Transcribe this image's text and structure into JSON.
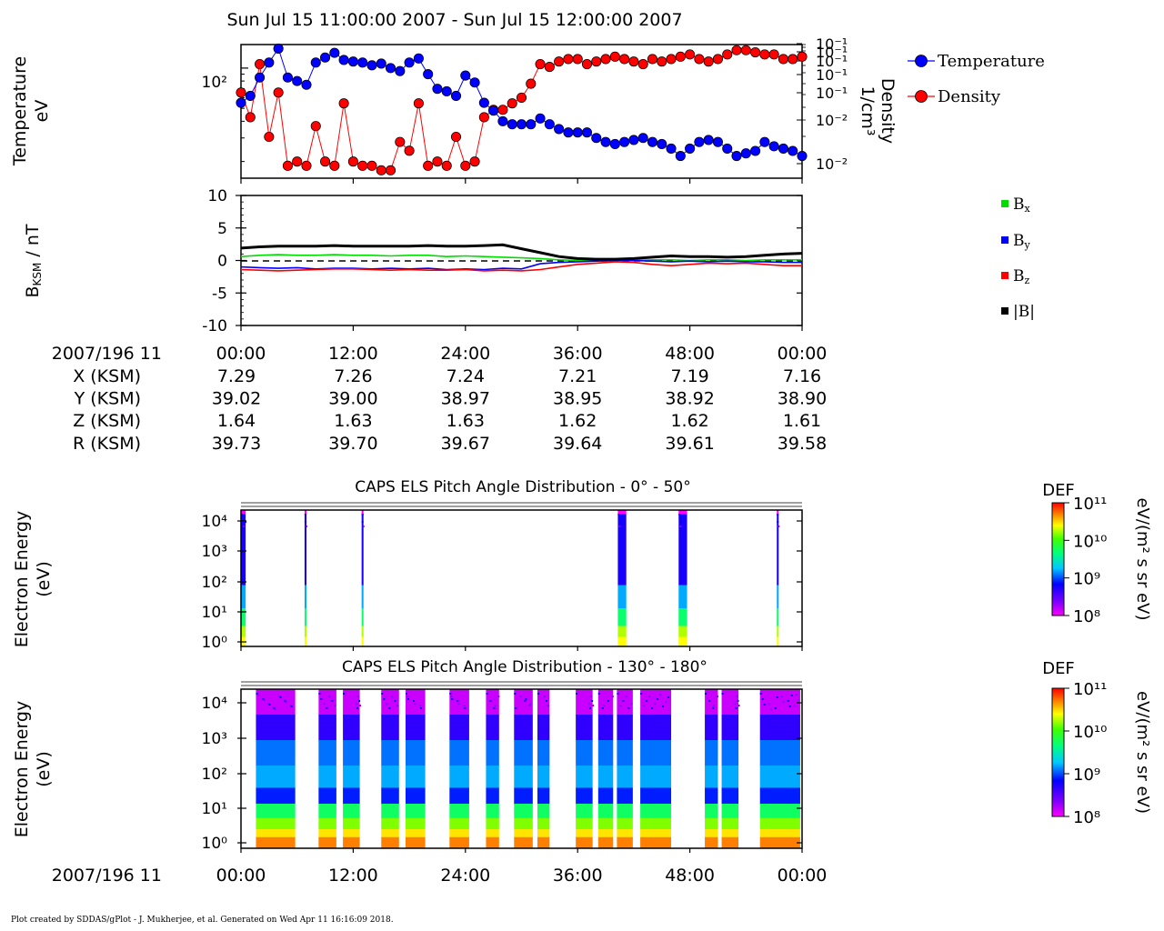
{
  "title": "Sun Jul 15 11:00:00 2007 - Sun Jul 15 12:00:00 2007",
  "footer": "Plot created by SDDAS/gPlot - J. Mukherjee, et al.  Generated on Wed Apr 11 16:16:09 2018.",
  "colors": {
    "temperature": "#0000ff",
    "density": "#ff0000",
    "bx": "#00dd00",
    "by": "#0000ff",
    "bz": "#ff0000",
    "btot": "#000000"
  },
  "ephemeris": {
    "time_label": "2007/196 11",
    "ticks": [
      "00:00",
      "12:00",
      "24:00",
      "36:00",
      "48:00",
      "00:00"
    ],
    "rows": [
      {
        "label": "X (KSM)",
        "values": [
          "7.29",
          "7.26",
          "7.24",
          "7.21",
          "7.19",
          "7.16"
        ]
      },
      {
        "label": "Y (KSM)",
        "values": [
          "39.02",
          "39.00",
          "38.97",
          "38.95",
          "38.92",
          "38.90"
        ]
      },
      {
        "label": "Z (KSM)",
        "values": [
          "1.64",
          "1.63",
          "1.63",
          "1.62",
          "1.62",
          "1.61"
        ]
      },
      {
        "label": "R (KSM)",
        "values": [
          "39.73",
          "39.70",
          "39.67",
          "39.64",
          "39.61",
          "39.58"
        ]
      }
    ]
  },
  "chart_data": [
    {
      "type": "scatter",
      "ylabel": [
        "Temperature",
        "eV"
      ],
      "ylabel_right": [
        "Density",
        "1/cm³"
      ],
      "y_tick_label": "10²",
      "y_tick_value": 100,
      "y2_tick_labels": [
        "10⁻¹",
        "10⁻¹",
        "10⁻¹",
        "10⁻¹",
        "10⁻¹",
        "10⁻²",
        "10⁻²"
      ],
      "ylim_log": [
        15,
        150
      ],
      "y2lim_log": [
        0.0085,
        0.135
      ],
      "legend": [
        "Temperature",
        "Density"
      ],
      "legend_position": "right",
      "x_minutes": [
        0,
        1,
        2,
        3,
        4,
        5,
        6,
        7,
        8,
        9,
        10,
        11,
        12,
        13,
        14,
        15,
        16,
        17,
        18,
        19,
        20,
        21,
        22,
        23,
        24,
        25,
        26,
        27,
        28,
        29,
        30,
        31,
        32,
        33,
        34,
        35,
        36,
        37,
        38,
        39,
        40,
        41,
        42,
        43,
        44,
        45,
        46,
        47,
        48,
        49,
        50,
        51,
        52,
        53,
        54,
        55,
        56,
        57,
        58,
        59,
        60
      ],
      "series": [
        {
          "name": "Temperature",
          "values": [
            55,
            62,
            85,
            110,
            140,
            85,
            80,
            75,
            110,
            120,
            130,
            115,
            112,
            110,
            105,
            108,
            100,
            95,
            110,
            118,
            90,
            70,
            67,
            62,
            88,
            78,
            55,
            48,
            40,
            38,
            38,
            38,
            42,
            38,
            35,
            33,
            33,
            33,
            30,
            28,
            27,
            28,
            29,
            30,
            28,
            27,
            25,
            22,
            25,
            28,
            29,
            28,
            25,
            22,
            23,
            24,
            28,
            26,
            25,
            24,
            22
          ],
          "_right_axis": false
        },
        {
          "name": "Density",
          "values": [
            0.05,
            0.03,
            0.09,
            0.02,
            0.05,
            0.011,
            0.012,
            0.011,
            0.025,
            0.012,
            0.011,
            0.04,
            0.012,
            0.011,
            0.011,
            0.01,
            0.01,
            0.018,
            0.015,
            0.04,
            0.011,
            0.012,
            0.011,
            0.02,
            0.011,
            0.012,
            0.03,
            0.035,
            0.035,
            0.04,
            0.045,
            0.06,
            0.09,
            0.085,
            0.095,
            0.1,
            0.1,
            0.09,
            0.095,
            0.1,
            0.105,
            0.1,
            0.095,
            0.09,
            0.1,
            0.095,
            0.1,
            0.105,
            0.11,
            0.1,
            0.095,
            0.1,
            0.11,
            0.12,
            0.12,
            0.115,
            0.11,
            0.11,
            0.1,
            0.1,
            0.105
          ],
          "_right_axis": true
        }
      ]
    },
    {
      "type": "line",
      "ylabel": "B_KSM / nT",
      "ylim": [
        -10,
        10
      ],
      "yticks": [
        10,
        5,
        0,
        -5,
        -10
      ],
      "legend": [
        "Bx",
        "By",
        "Bz",
        "|B|"
      ],
      "legend_position": "right",
      "x_minutes": [
        0,
        2,
        4,
        6,
        8,
        10,
        12,
        14,
        16,
        18,
        20,
        22,
        24,
        26,
        28,
        30,
        32,
        34,
        36,
        38,
        40,
        42,
        44,
        46,
        48,
        50,
        52,
        54,
        56,
        58,
        60
      ],
      "series": [
        {
          "name": "Bx",
          "values": [
            0.6,
            0.8,
            0.9,
            0.8,
            0.8,
            0.9,
            0.8,
            0.8,
            0.7,
            0.8,
            0.8,
            0.6,
            0.7,
            0.6,
            0.5,
            0.4,
            0.3,
            0.1,
            0,
            0,
            0,
            0,
            0.1,
            0.1,
            0,
            0.1,
            0.1,
            0,
            0.1,
            0.1,
            0.1
          ]
        },
        {
          "name": "By",
          "values": [
            -1.0,
            -1.1,
            -1.2,
            -1.1,
            -1.3,
            -1.2,
            -1.2,
            -1.3,
            -1.2,
            -1.3,
            -1.2,
            -1.4,
            -1.3,
            -1.4,
            -1.2,
            -1.3,
            -0.5,
            -0.3,
            -0.2,
            -0.1,
            0,
            0,
            -0.1,
            -0.2,
            -0.1,
            -0.2,
            -0.1,
            -0.2,
            -0.2,
            -0.3,
            -0.3
          ]
        },
        {
          "name": "Bz",
          "values": [
            -1.4,
            -1.5,
            -1.6,
            -1.5,
            -1.4,
            -1.3,
            -1.3,
            -1.4,
            -1.5,
            -1.4,
            -1.5,
            -1.5,
            -1.4,
            -1.6,
            -1.5,
            -1.6,
            -1.4,
            -1.0,
            -0.6,
            -0.4,
            -0.2,
            -0.3,
            -0.6,
            -0.8,
            -0.6,
            -0.4,
            -0.5,
            -0.4,
            -0.6,
            -0.8,
            -0.8
          ]
        },
        {
          "name": "|B|",
          "values": [
            1.9,
            2.1,
            2.2,
            2.2,
            2.2,
            2.3,
            2.2,
            2.2,
            2.2,
            2.2,
            2.3,
            2.2,
            2.2,
            2.3,
            2.4,
            1.8,
            1.2,
            0.6,
            0.3,
            0.2,
            0.2,
            0.3,
            0.5,
            0.7,
            0.6,
            0.6,
            0.5,
            0.6,
            0.8,
            1.0,
            1.1
          ]
        }
      ]
    },
    {
      "type": "heatmap",
      "title": "CAPS ELS Pitch Angle Distribution - 0° - 50°",
      "ylabel": [
        "Electron Energy",
        "(eV)"
      ],
      "yticks": [
        "10⁴",
        "10³",
        "10²",
        "10¹",
        "10⁰"
      ],
      "colorbar": {
        "title": "DEF",
        "unit": "eV/(m² s sr eV)",
        "ticks": [
          "10¹¹",
          "10¹⁰",
          "10⁹",
          "10⁸"
        ]
      },
      "active_intervals_min": [
        [
          0,
          0.5
        ],
        [
          6.8,
          7.0
        ],
        [
          12.9,
          13.1
        ],
        [
          40.3,
          41.2
        ],
        [
          46.8,
          47.7
        ],
        [
          57.3,
          57.5
        ]
      ]
    },
    {
      "type": "heatmap",
      "title": "CAPS ELS Pitch Angle Distribution - 130° - 180°",
      "ylabel": [
        "Electron Energy",
        "(eV)"
      ],
      "yticks": [
        "10⁴",
        "10³",
        "10²",
        "10¹",
        "10⁰"
      ],
      "colorbar": {
        "title": "DEF",
        "unit": "eV/(m² s sr eV)",
        "ticks": [
          "10¹¹",
          "10¹⁰",
          "10⁹",
          "10⁸"
        ]
      },
      "active_intervals_min": [
        [
          1.6,
          5.8
        ],
        [
          8.3,
          10.2
        ],
        [
          10.9,
          12.7
        ],
        [
          15.0,
          16.9
        ],
        [
          17.6,
          19.7
        ],
        [
          22.3,
          24.4
        ],
        [
          26.2,
          27.6
        ],
        [
          29.2,
          31.2
        ],
        [
          31.7,
          33.0
        ],
        [
          35.8,
          37.6
        ],
        [
          38.2,
          39.8
        ],
        [
          40.2,
          41.9
        ],
        [
          42.7,
          46.0
        ],
        [
          49.6,
          51.0
        ],
        [
          51.4,
          53.2
        ],
        [
          55.5,
          59.8
        ]
      ],
      "x_tick_labels": [
        "00:00",
        "12:00",
        "24:00",
        "36:00",
        "48:00",
        "00:00"
      ],
      "x_time_label": "2007/196 11"
    }
  ]
}
